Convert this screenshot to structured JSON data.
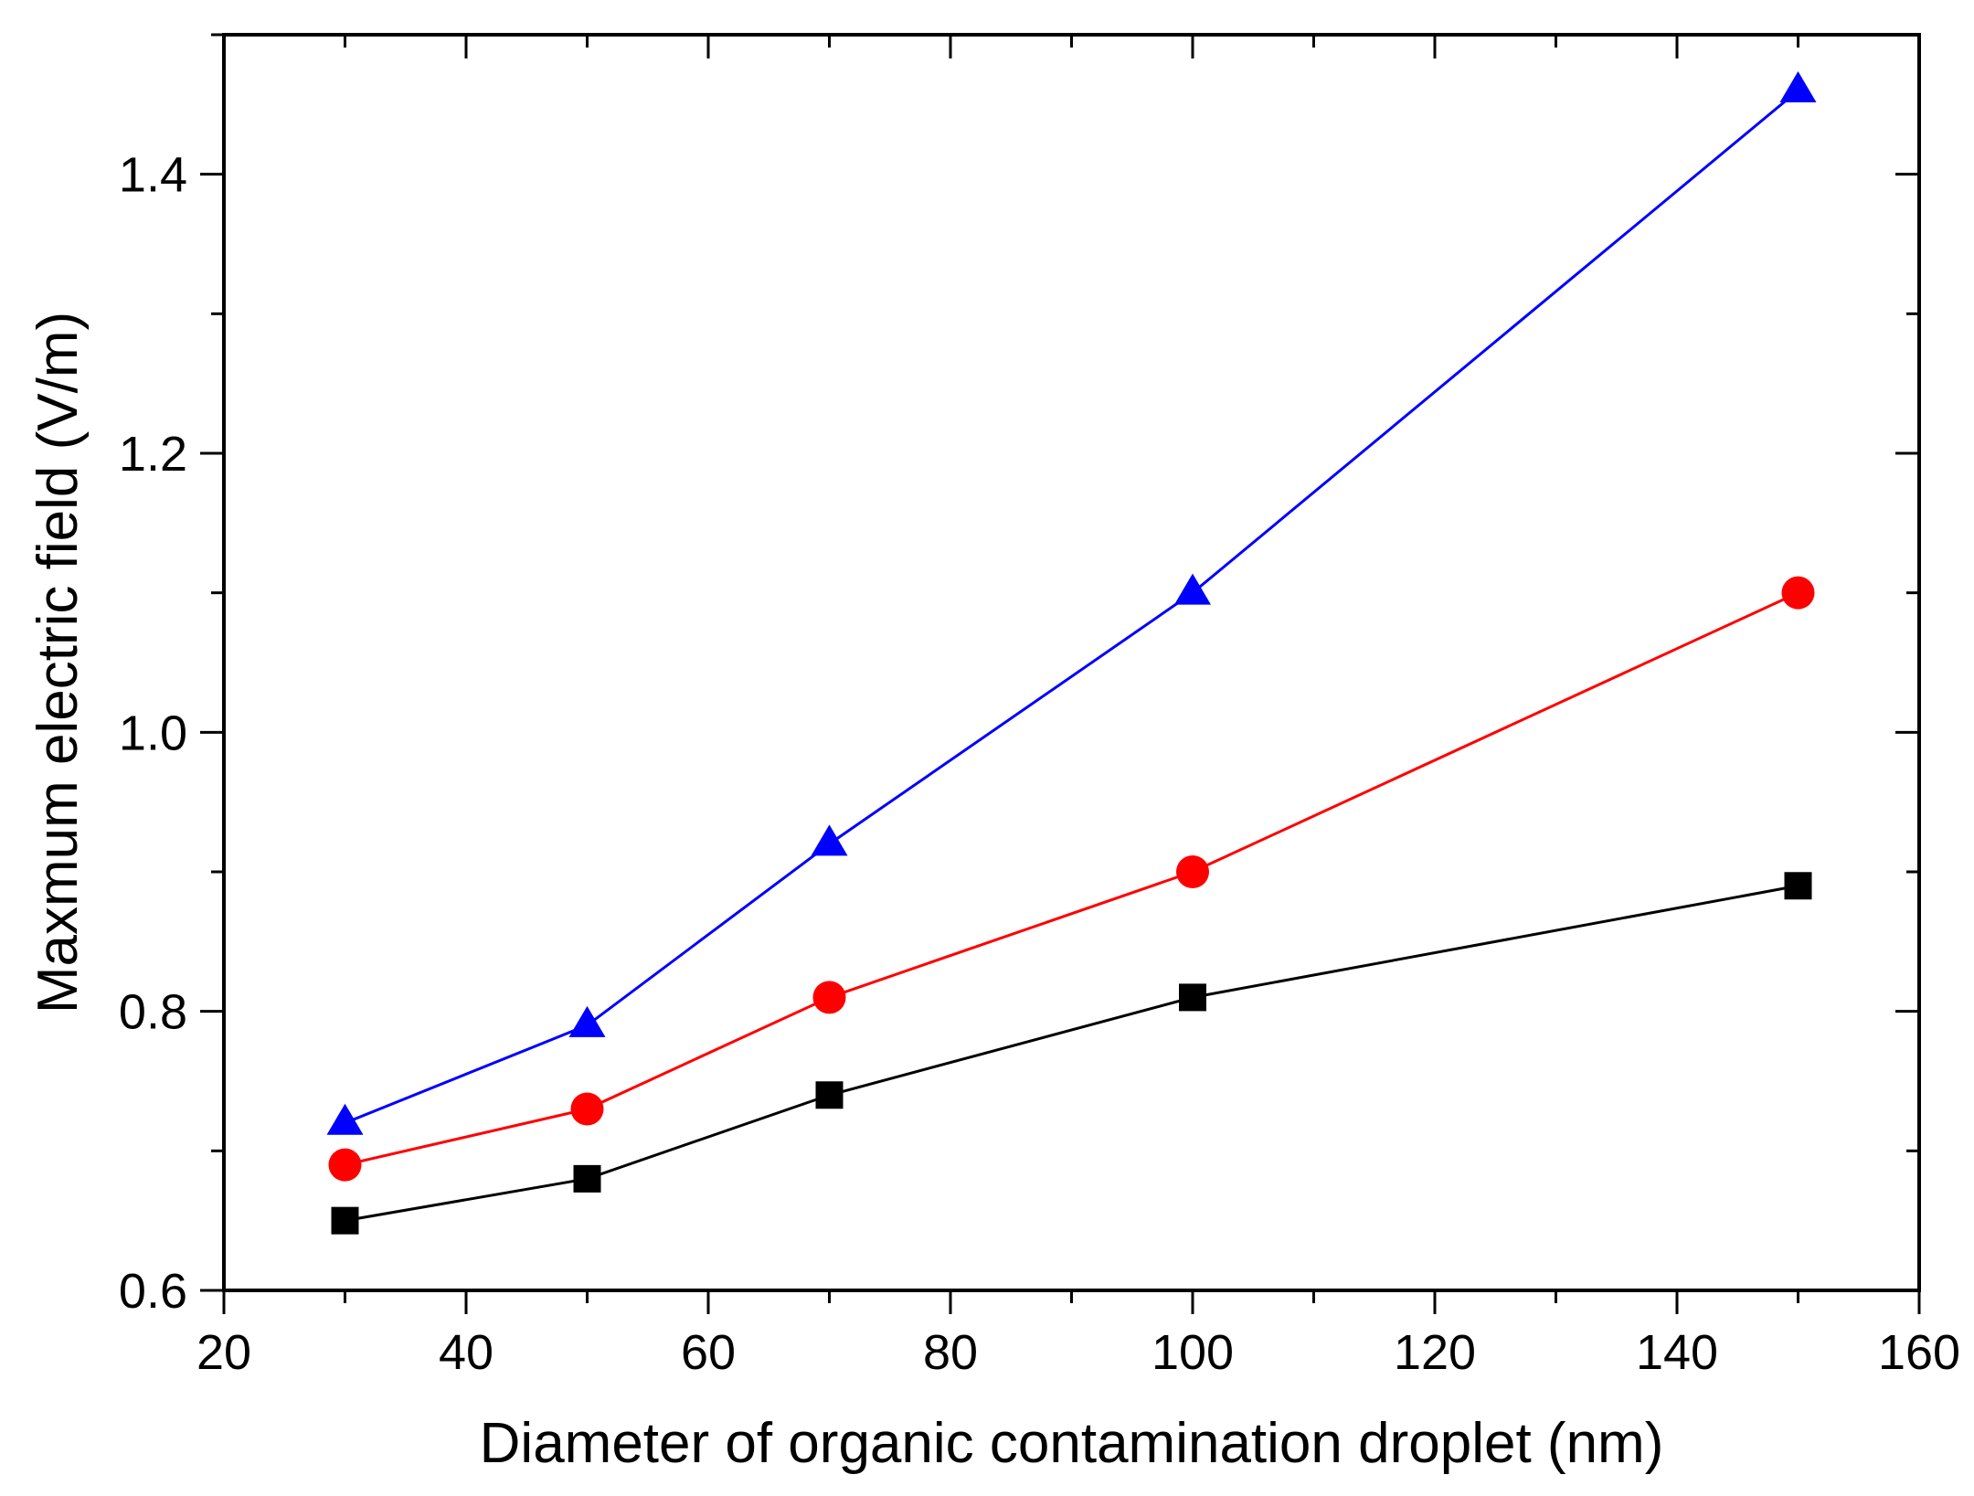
{
  "chart_data": {
    "type": "line",
    "title": "",
    "xlabel": "Diameter of  organic contamination droplet (nm)",
    "ylabel": "Maxmum electric field (V/m)",
    "xlim": [
      20,
      160
    ],
    "ylim": [
      0.6,
      1.5
    ],
    "x_ticks": [
      20,
      40,
      60,
      80,
      100,
      120,
      140,
      160
    ],
    "x_tick_labels": [
      "20",
      "40",
      "60",
      "80",
      "100",
      "120",
      "140",
      "160"
    ],
    "x_minor_step": 10,
    "y_ticks": [
      0.6,
      0.8,
      1.0,
      1.2,
      1.4
    ],
    "y_tick_labels": [
      "0.6",
      "0.8",
      "1.0",
      "1.2",
      "1.4"
    ],
    "y_minor_step": 0.1,
    "grid": false,
    "x": [
      30,
      50,
      70,
      100,
      150
    ],
    "series": [
      {
        "name": "square series",
        "marker": "square",
        "color": "#000000",
        "values": [
          0.65,
          0.68,
          0.74,
          0.81,
          0.89
        ]
      },
      {
        "name": "circle series",
        "marker": "circle",
        "color": "#ff0000",
        "values": [
          0.69,
          0.73,
          0.81,
          0.9,
          1.1
        ]
      },
      {
        "name": "triangle series",
        "marker": "triangle",
        "color": "#0000ff",
        "values": [
          0.72,
          0.79,
          0.92,
          1.1,
          1.46
        ]
      }
    ]
  }
}
